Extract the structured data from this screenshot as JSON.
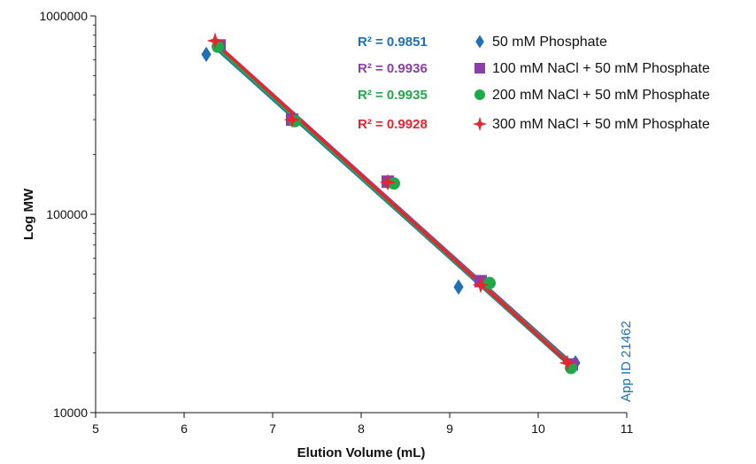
{
  "chart_data": {
    "type": "scatter",
    "xlabel": "Elution Volume (mL)",
    "ylabel": "Log MW",
    "xlim": [
      5,
      11
    ],
    "ylim": [
      10000,
      1000000
    ],
    "y_scale": "log",
    "x_ticks": [
      "5",
      "6",
      "7",
      "8",
      "9",
      "10",
      "11"
    ],
    "y_ticks": [
      "10000",
      "100000",
      "1000000"
    ],
    "grid": false,
    "legend_position": "top-right",
    "annotation": "App ID 21462",
    "series": [
      {
        "name": "50 mM Phosphate",
        "marker": "diamond",
        "color": "#1f6fb5",
        "r2": "R² = 0.9851",
        "points": [
          [
            6.25,
            640000
          ],
          [
            7.25,
            300000
          ],
          [
            8.3,
            145000
          ],
          [
            9.1,
            43000
          ],
          [
            10.42,
            17800
          ]
        ],
        "fit": [
          [
            6.35,
            710000
          ],
          [
            10.4,
            17000
          ]
        ]
      },
      {
        "name": "100 mM NaCl + 50 mM Phosphate",
        "marker": "square",
        "color": "#8b3fa6",
        "r2": "R² = 0.9936",
        "points": [
          [
            6.4,
            710000
          ],
          [
            7.22,
            300000
          ],
          [
            8.3,
            146000
          ],
          [
            9.35,
            46000
          ],
          [
            10.38,
            17500
          ]
        ],
        "fit": [
          [
            6.35,
            720000
          ],
          [
            10.38,
            17400
          ]
        ]
      },
      {
        "name": "200 mM NaCl + 50 mM Phosphate",
        "marker": "circle",
        "color": "#1faa4a",
        "r2": "R² = 0.9935",
        "points": [
          [
            6.38,
            700000
          ],
          [
            7.25,
            295000
          ],
          [
            8.37,
            143000
          ],
          [
            9.45,
            45000
          ],
          [
            10.37,
            16800
          ]
        ],
        "fit": [
          [
            6.35,
            715000
          ],
          [
            10.38,
            17200
          ]
        ]
      },
      {
        "name": "300 mM NaCl + 50 mM Phosphate",
        "marker": "star",
        "color": "#e8242c",
        "r2": "R² = 0.9928",
        "points": [
          [
            6.35,
            750000
          ],
          [
            7.22,
            300000
          ],
          [
            8.3,
            145000
          ],
          [
            9.35,
            44000
          ],
          [
            10.33,
            17800
          ]
        ],
        "fit": [
          [
            6.33,
            745000
          ],
          [
            10.35,
            17600
          ]
        ]
      }
    ]
  }
}
